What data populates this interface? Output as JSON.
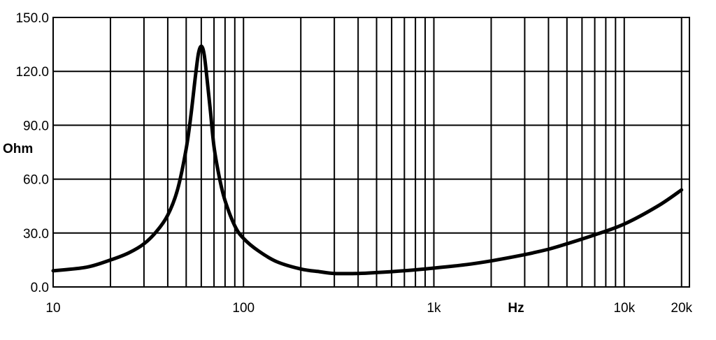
{
  "chart_data": {
    "type": "line",
    "title": "",
    "xlabel": "Hz",
    "ylabel": "Ohm",
    "xscale": "log",
    "xlim": [
      10,
      22000
    ],
    "ylim": [
      0,
      150
    ],
    "grid": true,
    "x_tick_labels": [
      {
        "value": 10,
        "label": "10"
      },
      {
        "value": 100,
        "label": "100"
      },
      {
        "value": 1000,
        "label": "1k"
      },
      {
        "value": 10000,
        "label": "10k"
      },
      {
        "value": 20000,
        "label": "20k"
      }
    ],
    "y_tick_labels": [
      {
        "value": 0,
        "label": "0.0"
      },
      {
        "value": 30,
        "label": "30.0"
      },
      {
        "value": 60,
        "label": "60.0"
      },
      {
        "value": 90,
        "label": "90.0"
      },
      {
        "value": 120,
        "label": "120.0"
      },
      {
        "value": 150,
        "label": "150.0"
      }
    ],
    "x_gridlines": [
      20,
      30,
      40,
      50,
      60,
      70,
      80,
      90,
      100,
      200,
      300,
      400,
      500,
      600,
      700,
      800,
      900,
      1000,
      2000,
      3000,
      4000,
      5000,
      6000,
      7000,
      8000,
      9000,
      10000,
      20000
    ],
    "series": [
      {
        "color": "#000000",
        "points": [
          [
            10,
            9
          ],
          [
            15,
            11
          ],
          [
            20,
            15
          ],
          [
            25,
            19
          ],
          [
            30,
            24
          ],
          [
            35,
            31
          ],
          [
            40,
            40
          ],
          [
            45,
            54
          ],
          [
            50,
            77
          ],
          [
            53,
            96
          ],
          [
            56,
            118
          ],
          [
            58,
            130
          ],
          [
            60,
            134
          ],
          [
            62,
            130
          ],
          [
            64,
            118
          ],
          [
            67,
            98
          ],
          [
            70,
            78
          ],
          [
            75,
            60
          ],
          [
            80,
            48
          ],
          [
            90,
            34
          ],
          [
            100,
            27
          ],
          [
            120,
            20
          ],
          [
            150,
            14
          ],
          [
            200,
            10
          ],
          [
            250,
            8.5
          ],
          [
            300,
            7.5
          ],
          [
            400,
            7.5
          ],
          [
            500,
            8
          ],
          [
            700,
            9
          ],
          [
            1000,
            10.5
          ],
          [
            1500,
            12.5
          ],
          [
            2000,
            14.5
          ],
          [
            3000,
            18
          ],
          [
            4000,
            21
          ],
          [
            5000,
            24
          ],
          [
            7000,
            29
          ],
          [
            10000,
            35
          ],
          [
            15000,
            45
          ],
          [
            20000,
            54
          ]
        ]
      }
    ]
  }
}
